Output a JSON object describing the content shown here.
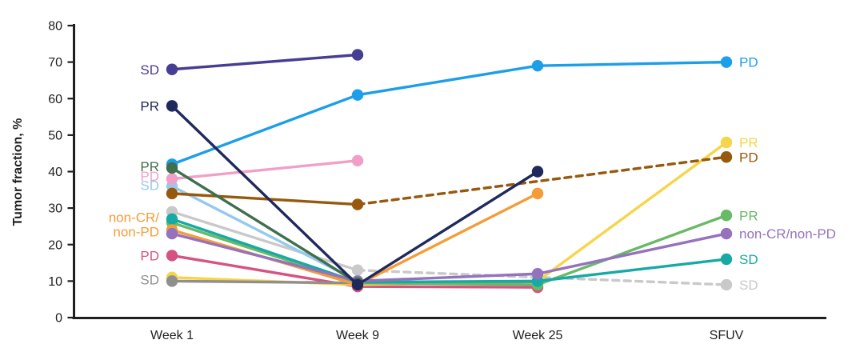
{
  "chart_data": {
    "type": "line",
    "title": "",
    "xlabel": "",
    "ylabel": "Tumor fraction, %",
    "categories": [
      "Week 1",
      "Week 9",
      "Week 25",
      "SFUV"
    ],
    "ylim": [
      0,
      80
    ],
    "yticks": [
      0,
      10,
      20,
      30,
      40,
      50,
      60,
      70,
      80
    ],
    "grid": false,
    "legend_position": "inline-labels",
    "axis_color": "#1f1f1f",
    "series": [
      {
        "id": "sd-lightgray",
        "response": "SD",
        "color": "#c9c9c9",
        "values": [
          29,
          13,
          null,
          9
        ],
        "dash_from": 1,
        "right_label": {
          "text": "SD",
          "v": 9
        }
      },
      {
        "id": "pd-crimson",
        "response": "PD",
        "color": "#d6537f",
        "values": [
          17,
          8.5,
          8.3,
          null
        ],
        "left_label": {
          "text": "PD",
          "v": 17
        }
      },
      {
        "id": "pr-yellow",
        "response": "PR",
        "color": "#f6d54a",
        "values": [
          11,
          9,
          10,
          48
        ],
        "right_label": {
          "text": "PR",
          "v": 48
        }
      },
      {
        "id": "sd-gray",
        "response": "SD",
        "color": "#8f8f8f",
        "values": [
          10,
          9.5,
          9.8,
          null
        ],
        "left_label": {
          "text": "SD",
          "v": 10.4
        }
      },
      {
        "id": "sd-lightblue",
        "response": "SD",
        "color": "#95c9ee",
        "values": [
          36,
          10,
          null,
          null
        ],
        "left_label": {
          "text": "SD",
          "v": 36.3
        }
      },
      {
        "id": "pd-pink",
        "response": "PD",
        "color": "#f0a0c8",
        "values": [
          38,
          43,
          null,
          null
        ],
        "left_label": {
          "text": "PD",
          "v": 38.8
        }
      },
      {
        "id": "pr-lightgreen",
        "response": "PR",
        "color": "#69ba66",
        "values": [
          26,
          9.5,
          9,
          28
        ],
        "right_label": {
          "text": "PR",
          "v": 28
        }
      },
      {
        "id": "sd-teal",
        "response": "SD",
        "color": "#17a9a5",
        "values": [
          27,
          9.7,
          10,
          16
        ],
        "right_label": {
          "text": "SD",
          "v": 16
        }
      },
      {
        "id": "noncr-nonpd-orange",
        "response": "non-CR/non-PD",
        "color": "#f59c38",
        "values": [
          24,
          9,
          34,
          null
        ],
        "left_label": {
          "lines": [
            "non-CR/",
            "non-PD"
          ],
          "v": 26
        }
      },
      {
        "id": "noncr-nonpd-purple",
        "response": "non-CR/non-PD",
        "color": "#9472bd",
        "values": [
          23,
          10,
          12,
          23
        ],
        "right_label": {
          "text": "non-CR/non-PD",
          "v": 23
        }
      },
      {
        "id": "pd-brown",
        "response": "PD",
        "color": "#97590e",
        "values": [
          34,
          31,
          null,
          44
        ],
        "dash_from": 1,
        "right_label": {
          "text": "PD",
          "v": 44
        }
      },
      {
        "id": "pd-blue",
        "response": "PD",
        "color": "#1d9ee8",
        "values": [
          42,
          61,
          69,
          70
        ],
        "right_label": {
          "text": "PD",
          "v": 70
        }
      },
      {
        "id": "pr-darkgreen",
        "response": "PR",
        "color": "#3f6f4d",
        "values": [
          41,
          9.5,
          null,
          null
        ],
        "left_label": {
          "text": "PR",
          "v": 41.4
        }
      },
      {
        "id": "sd-indigo",
        "response": "SD",
        "color": "#453e92",
        "values": [
          68,
          72,
          null,
          null
        ],
        "left_label": {
          "text": "SD",
          "v": 68
        }
      },
      {
        "id": "pr-navy",
        "response": "PR",
        "color": "#20295c",
        "values": [
          58,
          9,
          40,
          null
        ],
        "left_label": {
          "text": "PR",
          "v": 58
        }
      }
    ]
  }
}
